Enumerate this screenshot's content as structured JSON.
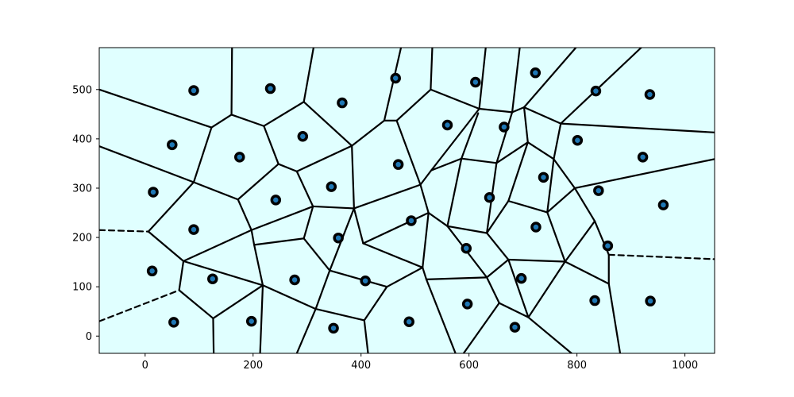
{
  "chart_data": {
    "type": "scatter",
    "subtype": "voronoi",
    "xlim": [
      -85,
      1055
    ],
    "ylim": [
      -35,
      585
    ],
    "x_ticks": [
      0,
      200,
      400,
      600,
      800,
      1000
    ],
    "y_ticks": [
      0,
      100,
      200,
      300,
      400,
      500
    ],
    "grid": false,
    "colors": {
      "region_fill": "#e0ffff",
      "edge": "#000000",
      "point_fill": "#1f77b4",
      "point_ring": "#000000",
      "axes": "#000000"
    },
    "points": [
      [
        90,
        498
      ],
      [
        232,
        502
      ],
      [
        365,
        473
      ],
      [
        464,
        523
      ],
      [
        612,
        515
      ],
      [
        723,
        534
      ],
      [
        835,
        497
      ],
      [
        935,
        490
      ],
      [
        50,
        388
      ],
      [
        175,
        363
      ],
      [
        292,
        405
      ],
      [
        560,
        428
      ],
      [
        665,
        424
      ],
      [
        801,
        397
      ],
      [
        15,
        292
      ],
      [
        242,
        276
      ],
      [
        345,
        303
      ],
      [
        469,
        348
      ],
      [
        738,
        322
      ],
      [
        840,
        295
      ],
      [
        922,
        363
      ],
      [
        90,
        216
      ],
      [
        358,
        199
      ],
      [
        493,
        234
      ],
      [
        638,
        281
      ],
      [
        724,
        221
      ],
      [
        857,
        183
      ],
      [
        960,
        266
      ],
      [
        13,
        132
      ],
      [
        125,
        116
      ],
      [
        277,
        114
      ],
      [
        408,
        112
      ],
      [
        595,
        178
      ],
      [
        697,
        117
      ],
      [
        53,
        28
      ],
      [
        197,
        30
      ],
      [
        349,
        16
      ],
      [
        489,
        29
      ],
      [
        597,
        65
      ],
      [
        685,
        18
      ],
      [
        833,
        72
      ],
      [
        936,
        71
      ]
    ],
    "edges": [
      [
        [
          -85,
          500
        ],
        [
          123,
          423
        ]
      ],
      [
        [
          123,
          423
        ],
        [
          160,
          449
        ]
      ],
      [
        [
          160,
          449
        ],
        [
          161,
          585
        ]
      ],
      [
        [
          160,
          449
        ],
        [
          220,
          426
        ]
      ],
      [
        [
          220,
          426
        ],
        [
          294,
          475
        ]
      ],
      [
        [
          294,
          475
        ],
        [
          312,
          585
        ]
      ],
      [
        [
          294,
          475
        ],
        [
          383,
          386
        ]
      ],
      [
        [
          220,
          426
        ],
        [
          247,
          349
        ]
      ],
      [
        [
          247,
          349
        ],
        [
          281,
          334
        ]
      ],
      [
        [
          281,
          334
        ],
        [
          383,
          386
        ]
      ],
      [
        [
          383,
          386
        ],
        [
          443,
          437
        ]
      ],
      [
        [
          443,
          437
        ],
        [
          474,
          585
        ]
      ],
      [
        [
          443,
          437
        ],
        [
          466,
          437
        ]
      ],
      [
        [
          466,
          437
        ],
        [
          529,
          500
        ]
      ],
      [
        [
          529,
          500
        ],
        [
          532,
          585
        ]
      ],
      [
        [
          529,
          500
        ],
        [
          619,
          461
        ]
      ],
      [
        [
          619,
          461
        ],
        [
          631,
          585
        ]
      ],
      [
        [
          619,
          461
        ],
        [
          680,
          454
        ]
      ],
      [
        [
          680,
          454
        ],
        [
          694,
          585
        ]
      ],
      [
        [
          680,
          454
        ],
        [
          702,
          464
        ]
      ],
      [
        [
          702,
          464
        ],
        [
          798,
          585
        ]
      ],
      [
        [
          702,
          464
        ],
        [
          770,
          431
        ]
      ],
      [
        [
          770,
          431
        ],
        [
          919,
          585
        ]
      ],
      [
        [
          770,
          431
        ],
        [
          1055,
          413
        ]
      ],
      [
        [
          123,
          423
        ],
        [
          90,
          312
        ]
      ],
      [
        [
          -85,
          385
        ],
        [
          90,
          312
        ]
      ],
      [
        [
          90,
          312
        ],
        [
          172,
          277
        ]
      ],
      [
        [
          172,
          277
        ],
        [
          247,
          349
        ]
      ],
      [
        [
          281,
          334
        ],
        [
          311,
          263
        ]
      ],
      [
        [
          311,
          263
        ],
        [
          387,
          259
        ]
      ],
      [
        [
          387,
          259
        ],
        [
          383,
          386
        ]
      ],
      [
        [
          387,
          259
        ],
        [
          510,
          307
        ]
      ],
      [
        [
          510,
          307
        ],
        [
          466,
          437
        ]
      ],
      [
        [
          510,
          307
        ],
        [
          530,
          336
        ]
      ],
      [
        [
          530,
          336
        ],
        [
          619,
          461
        ]
      ],
      [
        [
          530,
          336
        ],
        [
          586,
          360
        ]
      ],
      [
        [
          586,
          360
        ],
        [
          617,
          452
        ]
      ],
      [
        [
          586,
          360
        ],
        [
          651,
          351
        ]
      ],
      [
        [
          651,
          351
        ],
        [
          680,
          454
        ]
      ],
      [
        [
          651,
          351
        ],
        [
          709,
          393
        ]
      ],
      [
        [
          709,
          393
        ],
        [
          702,
          464
        ]
      ],
      [
        [
          709,
          393
        ],
        [
          757,
          359
        ]
      ],
      [
        [
          757,
          359
        ],
        [
          770,
          431
        ]
      ],
      [
        [
          757,
          359
        ],
        [
          796,
          300
        ]
      ],
      [
        [
          796,
          300
        ],
        [
          1055,
          359
        ]
      ],
      [
        [
          172,
          277
        ],
        [
          197,
          215
        ]
      ],
      [
        [
          197,
          215
        ],
        [
          311,
          263
        ]
      ],
      [
        [
          -85,
          215
        ],
        [
          6,
          212
        ]
      ],
      [
        [
          6,
          212
        ],
        [
          90,
          312
        ]
      ],
      [
        [
          6,
          212
        ],
        [
          71,
          152
        ]
      ],
      [
        [
          71,
          152
        ],
        [
          197,
          215
        ]
      ],
      [
        [
          197,
          215
        ],
        [
          202,
          185
        ]
      ],
      [
        [
          202,
          185
        ],
        [
          294,
          198
        ]
      ],
      [
        [
          294,
          198
        ],
        [
          311,
          263
        ]
      ],
      [
        [
          294,
          198
        ],
        [
          342,
          133
        ]
      ],
      [
        [
          342,
          133
        ],
        [
          387,
          259
        ]
      ],
      [
        [
          510,
          307
        ],
        [
          525,
          250
        ]
      ],
      [
        [
          387,
          259
        ],
        [
          404,
          188
        ]
      ],
      [
        [
          404,
          188
        ],
        [
          525,
          250
        ]
      ],
      [
        [
          404,
          188
        ],
        [
          514,
          139
        ]
      ],
      [
        [
          514,
          139
        ],
        [
          525,
          250
        ]
      ],
      [
        [
          525,
          250
        ],
        [
          560,
          223
        ]
      ],
      [
        [
          560,
          223
        ],
        [
          586,
          360
        ]
      ],
      [
        [
          560,
          223
        ],
        [
          633,
          209
        ]
      ],
      [
        [
          633,
          209
        ],
        [
          651,
          351
        ]
      ],
      [
        [
          633,
          209
        ],
        [
          673,
          274
        ]
      ],
      [
        [
          673,
          274
        ],
        [
          709,
          393
        ]
      ],
      [
        [
          673,
          274
        ],
        [
          745,
          251
        ]
      ],
      [
        [
          745,
          251
        ],
        [
          757,
          359
        ]
      ],
      [
        [
          745,
          251
        ],
        [
          796,
          300
        ]
      ],
      [
        [
          796,
          300
        ],
        [
          833,
          233
        ]
      ],
      [
        [
          745,
          251
        ],
        [
          778,
          151
        ]
      ],
      [
        [
          778,
          151
        ],
        [
          833,
          233
        ]
      ],
      [
        [
          833,
          233
        ],
        [
          859,
          165
        ]
      ],
      [
        [
          859,
          165
        ],
        [
          1055,
          156
        ]
      ],
      [
        [
          -85,
          30
        ],
        [
          63,
          93
        ]
      ],
      [
        [
          63,
          93
        ],
        [
          71,
          152
        ]
      ],
      [
        [
          202,
          185
        ],
        [
          218,
          103
        ]
      ],
      [
        [
          218,
          103
        ],
        [
          71,
          152
        ]
      ],
      [
        [
          63,
          93
        ],
        [
          126,
          36
        ]
      ],
      [
        [
          126,
          36
        ],
        [
          127,
          -35
        ]
      ],
      [
        [
          126,
          36
        ],
        [
          218,
          103
        ]
      ],
      [
        [
          218,
          103
        ],
        [
          213,
          -35
        ]
      ],
      [
        [
          342,
          133
        ],
        [
          316,
          55
        ]
      ],
      [
        [
          316,
          55
        ],
        [
          218,
          103
        ]
      ],
      [
        [
          316,
          55
        ],
        [
          281,
          -35
        ]
      ],
      [
        [
          316,
          55
        ],
        [
          406,
          32
        ]
      ],
      [
        [
          406,
          32
        ],
        [
          413,
          -35
        ]
      ],
      [
        [
          406,
          32
        ],
        [
          448,
          100
        ]
      ],
      [
        [
          448,
          100
        ],
        [
          342,
          133
        ]
      ],
      [
        [
          448,
          100
        ],
        [
          514,
          139
        ]
      ],
      [
        [
          514,
          139
        ],
        [
          521,
          115
        ]
      ],
      [
        [
          521,
          115
        ],
        [
          575,
          -35
        ]
      ],
      [
        [
          521,
          115
        ],
        [
          633,
          119
        ]
      ],
      [
        [
          633,
          119
        ],
        [
          560,
          223
        ]
      ],
      [
        [
          633,
          119
        ],
        [
          673,
          155
        ]
      ],
      [
        [
          673,
          155
        ],
        [
          633,
          209
        ]
      ],
      [
        [
          673,
          155
        ],
        [
          778,
          151
        ]
      ],
      [
        [
          633,
          119
        ],
        [
          656,
          67
        ]
      ],
      [
        [
          656,
          67
        ],
        [
          710,
          38
        ]
      ],
      [
        [
          710,
          38
        ],
        [
          673,
          155
        ]
      ],
      [
        [
          656,
          67
        ],
        [
          590,
          -35
        ]
      ],
      [
        [
          710,
          38
        ],
        [
          790,
          -35
        ]
      ],
      [
        [
          710,
          38
        ],
        [
          778,
          151
        ]
      ],
      [
        [
          778,
          151
        ],
        [
          859,
          106
        ]
      ],
      [
        [
          859,
          106
        ],
        [
          859,
          165
        ]
      ],
      [
        [
          859,
          106
        ],
        [
          880,
          -35
        ]
      ]
    ],
    "dashed_edges": [
      [
        [
          -85,
          215
        ],
        [
          6,
          212
        ]
      ],
      [
        [
          -85,
          30
        ],
        [
          63,
          93
        ]
      ],
      [
        [
          859,
          165
        ],
        [
          1055,
          156
        ]
      ]
    ]
  }
}
